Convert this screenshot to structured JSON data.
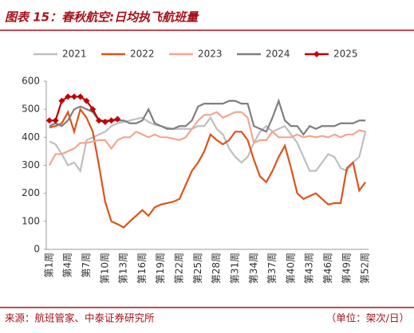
{
  "chart_data": {
    "type": "line",
    "title": "图表 15：春秋航空:日均执飞航班量",
    "source": "来源：航班管家、中泰证券研究所",
    "unit": "（单位：架次/日）",
    "categories": [
      "第1周",
      null,
      null,
      "第4周",
      null,
      null,
      "第7周",
      null,
      null,
      "第10周",
      null,
      null,
      "第13周",
      null,
      null,
      "第16周",
      null,
      null,
      "第19周",
      null,
      null,
      "第22周",
      null,
      null,
      "第25周",
      null,
      null,
      "第28周",
      null,
      null,
      "第31周",
      null,
      null,
      "第34周",
      null,
      null,
      "第37周",
      null,
      null,
      "第40周",
      null,
      null,
      "第43周",
      null,
      null,
      "第46周",
      null,
      null,
      "第49周",
      null,
      null,
      "第52周"
    ],
    "ylim": [
      0,
      600
    ],
    "yticks": [
      0,
      100,
      200,
      300,
      400,
      500,
      600
    ],
    "series": [
      {
        "name": "2021",
        "color": "#bfbfbf",
        "values": [
          385,
          375,
          340,
          300,
          310,
          280,
          390,
          400,
          410,
          420,
          440,
          450,
          455,
          460,
          465,
          470,
          455,
          445,
          440,
          435,
          430,
          430,
          430,
          430,
          440,
          440,
          470,
          430,
          410,
          360,
          330,
          310,
          330,
          380,
          420,
          440,
          420,
          430,
          440,
          410,
          380,
          330,
          280,
          280,
          310,
          340,
          330,
          290,
          280,
          310,
          330,
          420
        ]
      },
      {
        "name": "2022",
        "color": "#e0521a",
        "values": [
          435,
          440,
          450,
          490,
          420,
          500,
          470,
          420,
          300,
          170,
          100,
          90,
          78,
          100,
          120,
          140,
          120,
          150,
          160,
          165,
          170,
          180,
          230,
          280,
          310,
          350,
          410,
          390,
          375,
          390,
          420,
          420,
          390,
          320,
          260,
          240,
          280,
          330,
          370,
          290,
          200,
          180,
          190,
          200,
          180,
          160,
          165,
          165,
          290,
          310,
          210,
          240
        ]
      },
      {
        "name": "2023",
        "color": "#f4a58e",
        "values": [
          300,
          340,
          340,
          350,
          360,
          380,
          380,
          385,
          390,
          390,
          360,
          390,
          400,
          400,
          420,
          410,
          400,
          410,
          400,
          400,
          395,
          390,
          400,
          430,
          460,
          480,
          480,
          490,
          470,
          480,
          490,
          490,
          470,
          380,
          390,
          390,
          420,
          400,
          400,
          400,
          410,
          400,
          405,
          400,
          405,
          400,
          410,
          400,
          410,
          410,
          425,
          420
        ]
      },
      {
        "name": "2024",
        "color": "#7f7f7f",
        "values": [
          440,
          450,
          440,
          460,
          500,
          510,
          500,
          490,
          460,
          460,
          460,
          460,
          460,
          450,
          450,
          460,
          500,
          450,
          440,
          430,
          430,
          440,
          440,
          460,
          510,
          520,
          520,
          520,
          520,
          530,
          530,
          520,
          520,
          440,
          430,
          420,
          470,
          530,
          460,
          440,
          440,
          410,
          440,
          430,
          440,
          440,
          440,
          450,
          450,
          450,
          460,
          460
        ]
      },
      {
        "name": "2025",
        "color": "#c00000",
        "marker": "diamond",
        "values": [
          460,
          460,
          530,
          545,
          545,
          545,
          530,
          500,
          460,
          455,
          460,
          465,
          null,
          null,
          null,
          null,
          null,
          null,
          null,
          null,
          null,
          null,
          null,
          null,
          null,
          null,
          null,
          null,
          null,
          null,
          null,
          null,
          null,
          null,
          null,
          null,
          null,
          null,
          null,
          null,
          null,
          null,
          null,
          null,
          null,
          null,
          null,
          null,
          null,
          null,
          null,
          null
        ]
      }
    ]
  }
}
